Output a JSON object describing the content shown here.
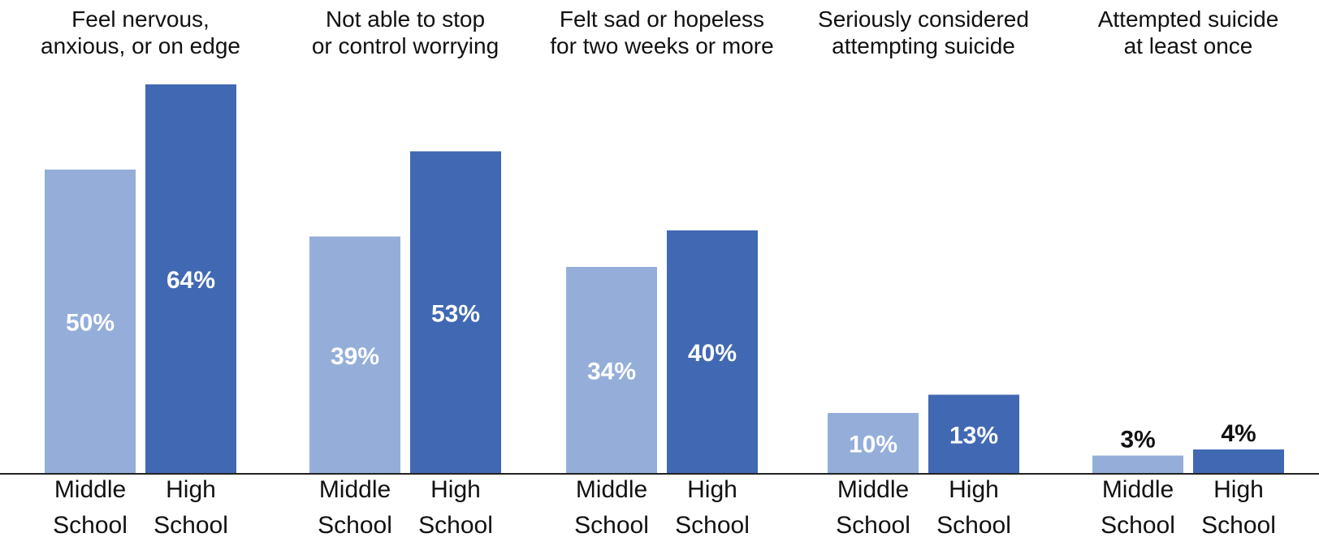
{
  "colors": {
    "middle_school": "#94aed9",
    "high_school": "#4169b3",
    "axis": "#222222",
    "label_inside": "#ffffff",
    "label_outside": "#111111"
  },
  "chart_data": {
    "type": "bar",
    "title": "",
    "xlabel": "",
    "ylabel": "",
    "grid": false,
    "ylim": [
      0,
      70
    ],
    "series_order": [
      "middle_school",
      "high_school"
    ],
    "groups": [
      {
        "title_lines": [
          "Feel nervous,",
          "anxious, or on edge"
        ],
        "bars": [
          {
            "series": "middle_school",
            "category_lines": [
              "Middle",
              "School"
            ],
            "value": 50,
            "label": "50%"
          },
          {
            "series": "high_school",
            "category_lines": [
              "High",
              "School"
            ],
            "value": 64,
            "label": "64%"
          }
        ]
      },
      {
        "title_lines": [
          "Not able to stop",
          "or control worrying"
        ],
        "bars": [
          {
            "series": "middle_school",
            "category_lines": [
              "Middle",
              "School"
            ],
            "value": 39,
            "label": "39%"
          },
          {
            "series": "high_school",
            "category_lines": [
              "High",
              "School"
            ],
            "value": 53,
            "label": "53%"
          }
        ]
      },
      {
        "title_lines": [
          "Felt sad or hopeless",
          "for two weeks or more"
        ],
        "bars": [
          {
            "series": "middle_school",
            "category_lines": [
              "Middle",
              "School"
            ],
            "value": 34,
            "label": "34%"
          },
          {
            "series": "high_school",
            "category_lines": [
              "High",
              "School"
            ],
            "value": 40,
            "label": "40%"
          }
        ]
      },
      {
        "title_lines": [
          "Seriously considered",
          "attempting suicide"
        ],
        "bars": [
          {
            "series": "middle_school",
            "category_lines": [
              "Middle",
              "School"
            ],
            "value": 10,
            "label": "10%"
          },
          {
            "series": "high_school",
            "category_lines": [
              "High",
              "School"
            ],
            "value": 13,
            "label": "13%"
          }
        ]
      },
      {
        "title_lines": [
          "Attempted suicide",
          "at least once"
        ],
        "bars": [
          {
            "series": "middle_school",
            "category_lines": [
              "Middle",
              "School"
            ],
            "value": 3,
            "label": "3%"
          },
          {
            "series": "high_school",
            "category_lines": [
              "High",
              "School"
            ],
            "value": 4,
            "label": "4%"
          }
        ]
      }
    ]
  }
}
